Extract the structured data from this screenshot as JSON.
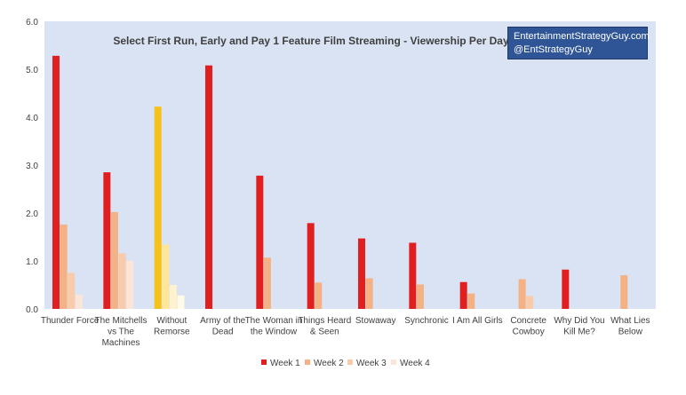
{
  "chart_data": {
    "type": "bar",
    "title": "Select First Run, Early and Pay 1 Feature Film Streaming - Viewership Per Day",
    "xlabel": "",
    "ylabel": "",
    "ylim": [
      0,
      6
    ],
    "yticks": [
      "0.0",
      "1.0",
      "2.0",
      "3.0",
      "4.0",
      "5.0",
      "6.0"
    ],
    "grid": false,
    "legend_position": "bottom",
    "categories": [
      [
        "Thunder Force"
      ],
      [
        "The Mitchells",
        "vs The",
        "Machines"
      ],
      [
        "Without",
        "Remorse"
      ],
      [
        "Army of the",
        "Dead"
      ],
      [
        "The Woman in",
        "the Window"
      ],
      [
        "Things Heard",
        "& Seen"
      ],
      [
        "Stowaway"
      ],
      [
        "Synchronic"
      ],
      [
        "I Am All Girls"
      ],
      [
        "Concrete",
        "Cowboy"
      ],
      [
        "Why Did You",
        "Kill Me?"
      ],
      [
        "What Lies",
        "Below"
      ]
    ],
    "series": [
      {
        "name": "Week 1",
        "color": "#e02020",
        "values": [
          5.28,
          2.85,
          4.22,
          5.08,
          2.78,
          1.79,
          1.47,
          1.38,
          0.56,
          null,
          0.82,
          null
        ]
      },
      {
        "name": "Week 2",
        "color": "#f4b183",
        "values": [
          1.76,
          2.02,
          1.34,
          null,
          1.07,
          0.55,
          0.64,
          0.51,
          0.32,
          0.62,
          null,
          0.7
        ]
      },
      {
        "name": "Week 3",
        "color": "#f8cbad",
        "values": [
          0.75,
          1.16,
          0.5,
          null,
          null,
          null,
          null,
          null,
          null,
          0.27,
          null,
          null
        ]
      },
      {
        "name": "Week 4",
        "color": "#fbe5d6",
        "values": [
          0.3,
          1.0,
          0.28,
          null,
          null,
          null,
          null,
          null,
          null,
          null,
          null,
          null
        ]
      }
    ],
    "highlight": {
      "category_index": 2,
      "colors": [
        "#f5c21b",
        "#ffe699",
        "#fff2cc",
        "#fffbe6"
      ]
    },
    "plot_background": "#dae3f3"
  },
  "brand": {
    "line1": "EntertainmentStrategyGuy.com",
    "line2": "@EntStrategyGuy",
    "background": "#2f5597"
  }
}
